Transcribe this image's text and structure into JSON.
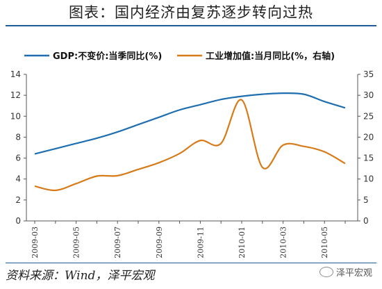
{
  "page": {
    "title": "图表：国内经济由复苏逐步转向过热",
    "source": "资料来源：Wind，泽平宏观",
    "watermark": "泽平宏观",
    "colors": {
      "title_rule": "#1f5d9a",
      "gdp": "#1f6eb0",
      "industry": "#d77a18"
    }
  },
  "chart_data": {
    "type": "line",
    "x": [
      "2009-03",
      "2009-04",
      "2009-05",
      "2009-06",
      "2009-07",
      "2009-08",
      "2009-09",
      "2009-10",
      "2009-11",
      "2009-12",
      "2010-01",
      "2010-02",
      "2010-03",
      "2010-04",
      "2010-05",
      "2010-06"
    ],
    "x_tick_labels": [
      "2009-03",
      "2009-05",
      "2009-07",
      "2009-09",
      "2009-11",
      "2010-01",
      "2010-03",
      "2010-05"
    ],
    "left_axis": {
      "ylim": [
        0,
        14
      ],
      "ticks": [
        0,
        2,
        4,
        6,
        8,
        10,
        12,
        14
      ]
    },
    "right_axis": {
      "ylim": [
        0,
        35
      ],
      "ticks": [
        0,
        5,
        10,
        15,
        20,
        25,
        30,
        35
      ]
    },
    "legend_position": "top",
    "grid": false,
    "series": [
      {
        "name": "GDP:不变价:当季同比(%)",
        "axis": "left",
        "color": "#1f6eb0",
        "values": [
          6.4,
          6.9,
          7.4,
          7.9,
          8.5,
          9.2,
          9.9,
          10.6,
          11.1,
          11.6,
          11.9,
          12.1,
          12.2,
          12.1,
          11.4,
          10.8
        ]
      },
      {
        "name": "工业增加值:当月同比(%，右轴)",
        "axis": "right",
        "color": "#d77a18",
        "values": [
          8.3,
          7.3,
          8.9,
          10.7,
          10.8,
          12.3,
          13.9,
          16.1,
          19.2,
          18.5,
          28.9,
          12.8,
          18.1,
          17.8,
          16.5,
          13.7
        ]
      }
    ]
  }
}
